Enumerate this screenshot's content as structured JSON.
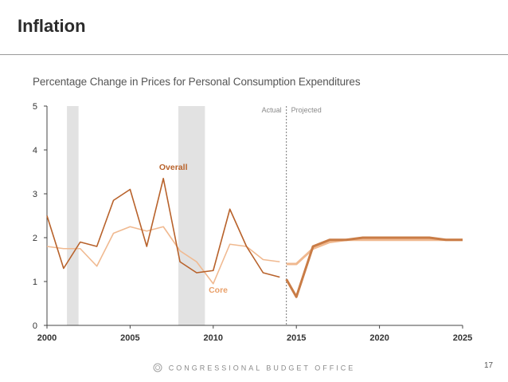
{
  "slide": {
    "title": "Inflation",
    "footer": "CONGRESSIONAL BUDGET OFFICE",
    "page_number": "17"
  },
  "colors": {
    "overall": "#b8622b",
    "core": "#f0b990",
    "projection": "#c97c46",
    "recession": "#e2e2e2",
    "axis": "#444444",
    "annotation": "#8a8a8a"
  },
  "chart_data": {
    "type": "line",
    "title": "Percentage Change in Prices for Personal Consumption Expenditures",
    "xlabel": "",
    "ylabel": "",
    "xlim": [
      2000,
      2025
    ],
    "ylim": [
      0,
      5
    ],
    "x_ticks": [
      2000,
      2005,
      2010,
      2015,
      2020,
      2025
    ],
    "y_ticks": [
      0,
      1,
      2,
      3,
      4,
      5
    ],
    "grid": false,
    "actual_projected_divider": 2014.4,
    "annotations": {
      "actual": "Actual",
      "projected": "Projected"
    },
    "recessions": [
      [
        2001.2,
        2001.9
      ],
      [
        2007.9,
        2009.5
      ]
    ],
    "series": [
      {
        "name": "Overall",
        "label": "Overall",
        "label_at": [
          2007.6,
          3.55
        ],
        "actual": {
          "x": [
            2000,
            2001,
            2002,
            2003,
            2004,
            2005,
            2006,
            2007,
            2008,
            2009,
            2010,
            2011,
            2012,
            2013,
            2014
          ],
          "y": [
            2.5,
            1.3,
            1.9,
            1.8,
            2.85,
            3.1,
            1.8,
            3.35,
            1.45,
            1.2,
            1.25,
            2.65,
            1.8,
            1.2,
            1.1
          ]
        },
        "projected": {
          "x": [
            2014.4,
            2015,
            2016,
            2017,
            2018,
            2019,
            2020,
            2021,
            2022,
            2023,
            2024,
            2025
          ],
          "y": [
            1.05,
            0.65,
            1.8,
            1.95,
            1.95,
            2.0,
            2.0,
            2.0,
            2.0,
            2.0,
            1.95,
            1.95
          ]
        }
      },
      {
        "name": "Core",
        "label": "Core",
        "label_at": [
          2010.3,
          0.75
        ],
        "actual": {
          "x": [
            2000,
            2001,
            2002,
            2003,
            2004,
            2005,
            2006,
            2007,
            2008,
            2009,
            2010,
            2011,
            2012,
            2013,
            2014
          ],
          "y": [
            1.8,
            1.75,
            1.75,
            1.35,
            2.1,
            2.25,
            2.15,
            2.25,
            1.7,
            1.45,
            0.95,
            1.85,
            1.8,
            1.5,
            1.45
          ]
        },
        "projected": {
          "x": [
            2014.4,
            2015,
            2016,
            2017,
            2018,
            2019,
            2020,
            2021,
            2022,
            2023,
            2024,
            2025
          ],
          "y": [
            1.4,
            1.4,
            1.75,
            1.9,
            1.95,
            1.95,
            1.95,
            1.95,
            1.95,
            1.95,
            1.95,
            1.95
          ]
        }
      }
    ]
  }
}
